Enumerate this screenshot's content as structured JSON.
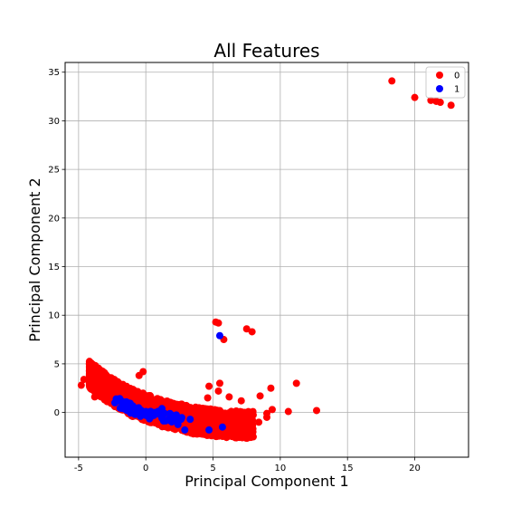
{
  "chart_data": {
    "type": "scatter",
    "title": "All Features",
    "xlabel": "Principal Component 1",
    "ylabel": "Principal Component 2",
    "xlim": [
      -6,
      24
    ],
    "ylim": [
      -4.6,
      36
    ],
    "xticks": [
      -5,
      0,
      5,
      10,
      15,
      20
    ],
    "yticks": [
      0,
      5,
      10,
      15,
      20,
      25,
      30,
      35
    ],
    "grid": true,
    "legend_position": "top-right",
    "series": [
      {
        "name": "0",
        "color": "#ff0000",
        "points": [
          [
            18.3,
            34.1
          ],
          [
            20.0,
            32.4
          ],
          [
            21.2,
            32.1
          ],
          [
            21.6,
            32.0
          ],
          [
            21.9,
            31.9
          ],
          [
            22.7,
            31.6
          ],
          [
            5.2,
            9.3
          ],
          [
            5.4,
            9.2
          ],
          [
            5.8,
            7.5
          ],
          [
            7.5,
            8.6
          ],
          [
            7.9,
            8.3
          ],
          [
            11.2,
            3.0
          ],
          [
            12.7,
            0.2
          ],
          [
            10.6,
            0.1
          ],
          [
            9.3,
            2.5
          ],
          [
            9.0,
            -0.1
          ],
          [
            9.4,
            0.3
          ],
          [
            8.5,
            1.7
          ],
          [
            9.0,
            -0.5
          ],
          [
            8.4,
            -1.0
          ],
          [
            7.9,
            -2.4
          ],
          [
            6.5,
            -2.3
          ],
          [
            5.5,
            3.0
          ],
          [
            5.4,
            2.2
          ],
          [
            4.7,
            2.7
          ],
          [
            4.6,
            1.5
          ],
          [
            6.2,
            1.6
          ],
          [
            7.1,
            1.2
          ],
          [
            -0.2,
            4.2
          ],
          [
            -0.5,
            3.8
          ],
          [
            -4.6,
            3.4
          ],
          [
            -4.8,
            2.8
          ],
          [
            -3.8,
            1.6
          ]
        ]
      },
      {
        "name": "1",
        "color": "#0000ff",
        "points": [
          [
            5.5,
            7.9
          ],
          [
            -2.2,
            1.4
          ],
          [
            -1.9,
            1.3
          ],
          [
            -2.3,
            1.0
          ],
          [
            -1.4,
            0.2
          ],
          [
            -0.8,
            -0.2
          ],
          [
            0.0,
            0.1
          ],
          [
            0.8,
            0.0
          ],
          [
            1.4,
            -0.1
          ],
          [
            1.2,
            -0.6
          ],
          [
            0.3,
            -0.5
          ],
          [
            -0.4,
            -0.4
          ],
          [
            2.2,
            -0.9
          ],
          [
            3.3,
            -0.7
          ],
          [
            2.9,
            -1.8
          ],
          [
            4.7,
            -1.8
          ],
          [
            5.7,
            -1.5
          ],
          [
            1.2,
            0.4
          ]
        ]
      }
    ],
    "cloud_class0": {
      "center_line": [
        [
          -4.2,
          3.5
        ],
        [
          -2.8,
          2.0
        ],
        [
          -1.0,
          0.6
        ],
        [
          1.0,
          -0.4
        ],
        [
          3.5,
          -1.2
        ],
        [
          6.0,
          -1.6
        ],
        [
          8.0,
          -1.7
        ]
      ],
      "spread_above": 1.8,
      "spread_below": 1.0,
      "count": 1600
    },
    "cloud_class1": {
      "center_line": [
        [
          -2.0,
          1.0
        ],
        [
          -0.5,
          0.0
        ],
        [
          1.5,
          -0.5
        ],
        [
          3.0,
          -1.0
        ]
      ],
      "spread_above": 0.5,
      "spread_below": 0.5,
      "count": 70
    }
  }
}
